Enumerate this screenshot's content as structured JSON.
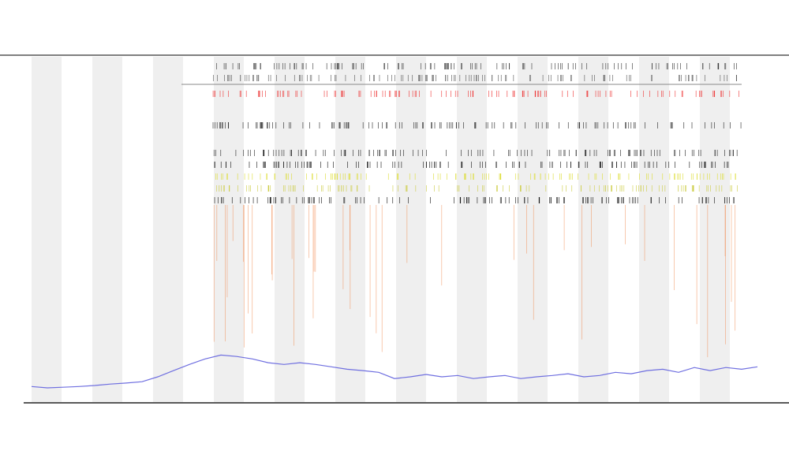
{
  "chart_data": {
    "type": "line",
    "color": "#6f6fe0",
    "values": [
      4.5,
      4.1,
      4.3,
      4.5,
      4.8,
      5.2,
      5.5,
      5.9,
      7.3,
      9.1,
      10.9,
      12.5,
      13.6,
      13.2,
      12.5,
      11.4,
      10.9,
      11.4,
      10.9,
      10.2,
      9.5,
      9.1,
      8.6,
      6.8,
      7.3,
      8.0,
      7.3,
      7.7,
      6.8,
      7.3,
      7.7,
      6.8,
      7.3,
      7.7,
      8.2,
      7.3,
      7.7,
      8.6,
      8.2,
      9.1,
      9.5,
      8.6,
      10.0,
      9.1,
      10.0,
      9.5,
      10.2
    ],
    "ylim": [
      0,
      100
    ]
  }
}
